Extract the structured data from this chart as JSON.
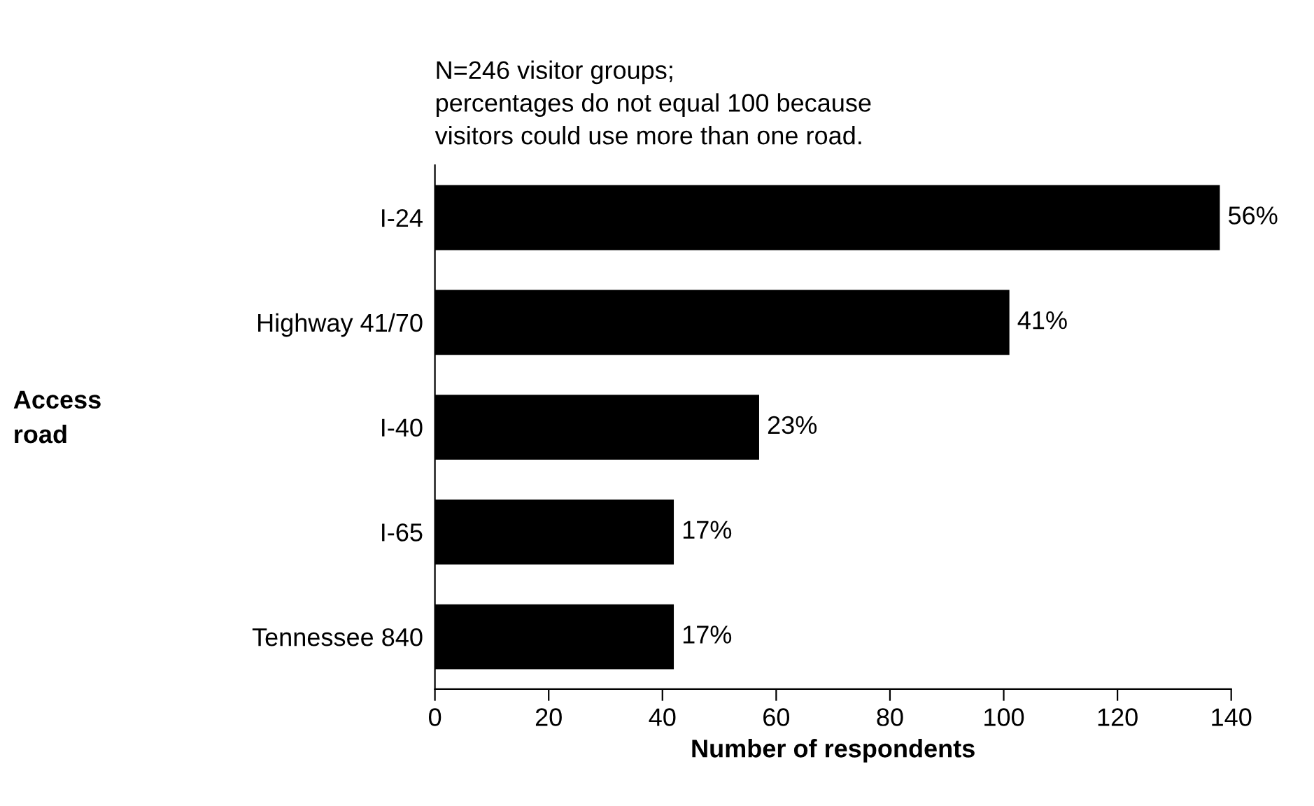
{
  "chart_data": {
    "type": "bar",
    "orientation": "horizontal",
    "subtitle": "N=246 visitor groups;\npercentages do not equal 100 because\nvisitors could use more than one road.",
    "xlabel": "Number of respondents",
    "annotations": [
      "Access\nroad",
      {
        "text": "56%",
        "x": 138,
        "y": "I-24"
      },
      {
        "text": "41%",
        "x": 101,
        "y": "Highway 41/70"
      },
      {
        "text": "23%",
        "x": 57,
        "y": "I-40"
      },
      {
        "text": "17%",
        "x": 42,
        "y": "I-65"
      },
      {
        "text": "17%",
        "x": 42,
        "y": "Tennessee 840"
      }
    ],
    "categories": [
      "I-24",
      "Highway 41/70",
      "I-40",
      "I-65",
      "Tennessee 840"
    ],
    "values": [
      138,
      101,
      57,
      42,
      42
    ],
    "color": "#000000",
    "xlim": [
      0,
      140
    ],
    "xticks": [
      0,
      20,
      40,
      60,
      80,
      100,
      120,
      140
    ],
    "grid": false,
    "legend": false
  }
}
